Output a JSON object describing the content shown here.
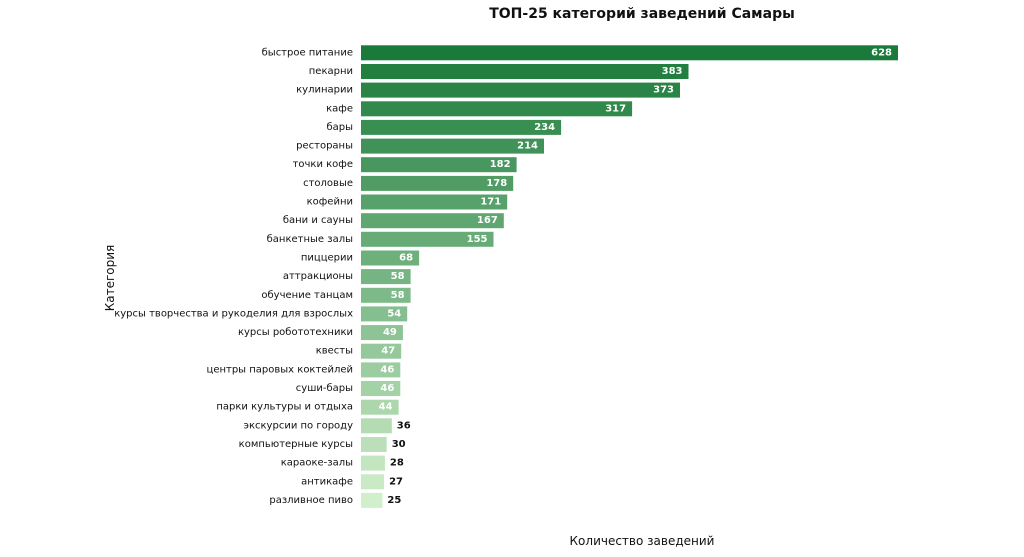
{
  "chart_data": {
    "type": "bar",
    "orientation": "horizontal",
    "title": "ТОП-25 категорий заведений Самары",
    "xlabel": "Количество заведений",
    "ylabel": "Категория",
    "xlim": [
      0,
      640
    ],
    "grid": false,
    "legend": "none",
    "colors": {
      "darkest": "#1a7a3a",
      "lightest": "#d2efcb",
      "label_inside": "#ffffff",
      "label_outside": "#111111"
    },
    "categories": [
      "быстрое питание",
      "пекарни",
      "кулинарии",
      "кафе",
      "бары",
      "рестораны",
      "точки кофе",
      "столовые",
      "кофейни",
      "бани и сауны",
      "банкетные залы",
      "пиццерии",
      "аттракционы",
      "обучение танцам",
      "курсы творчества и рукоделия для взрослых",
      "курсы робототехники",
      "квесты",
      "центры паровых коктейлей",
      "суши-бары",
      "парки культуры и отдыха",
      "экскурсии по городу",
      "компьютерные курсы",
      "караоке-залы",
      "антикафе",
      "разливное пиво"
    ],
    "values": [
      628,
      383,
      373,
      317,
      234,
      214,
      182,
      178,
      171,
      167,
      155,
      68,
      58,
      58,
      54,
      49,
      47,
      46,
      46,
      44,
      36,
      30,
      28,
      27,
      25
    ],
    "labels_inside_count": 20
  }
}
